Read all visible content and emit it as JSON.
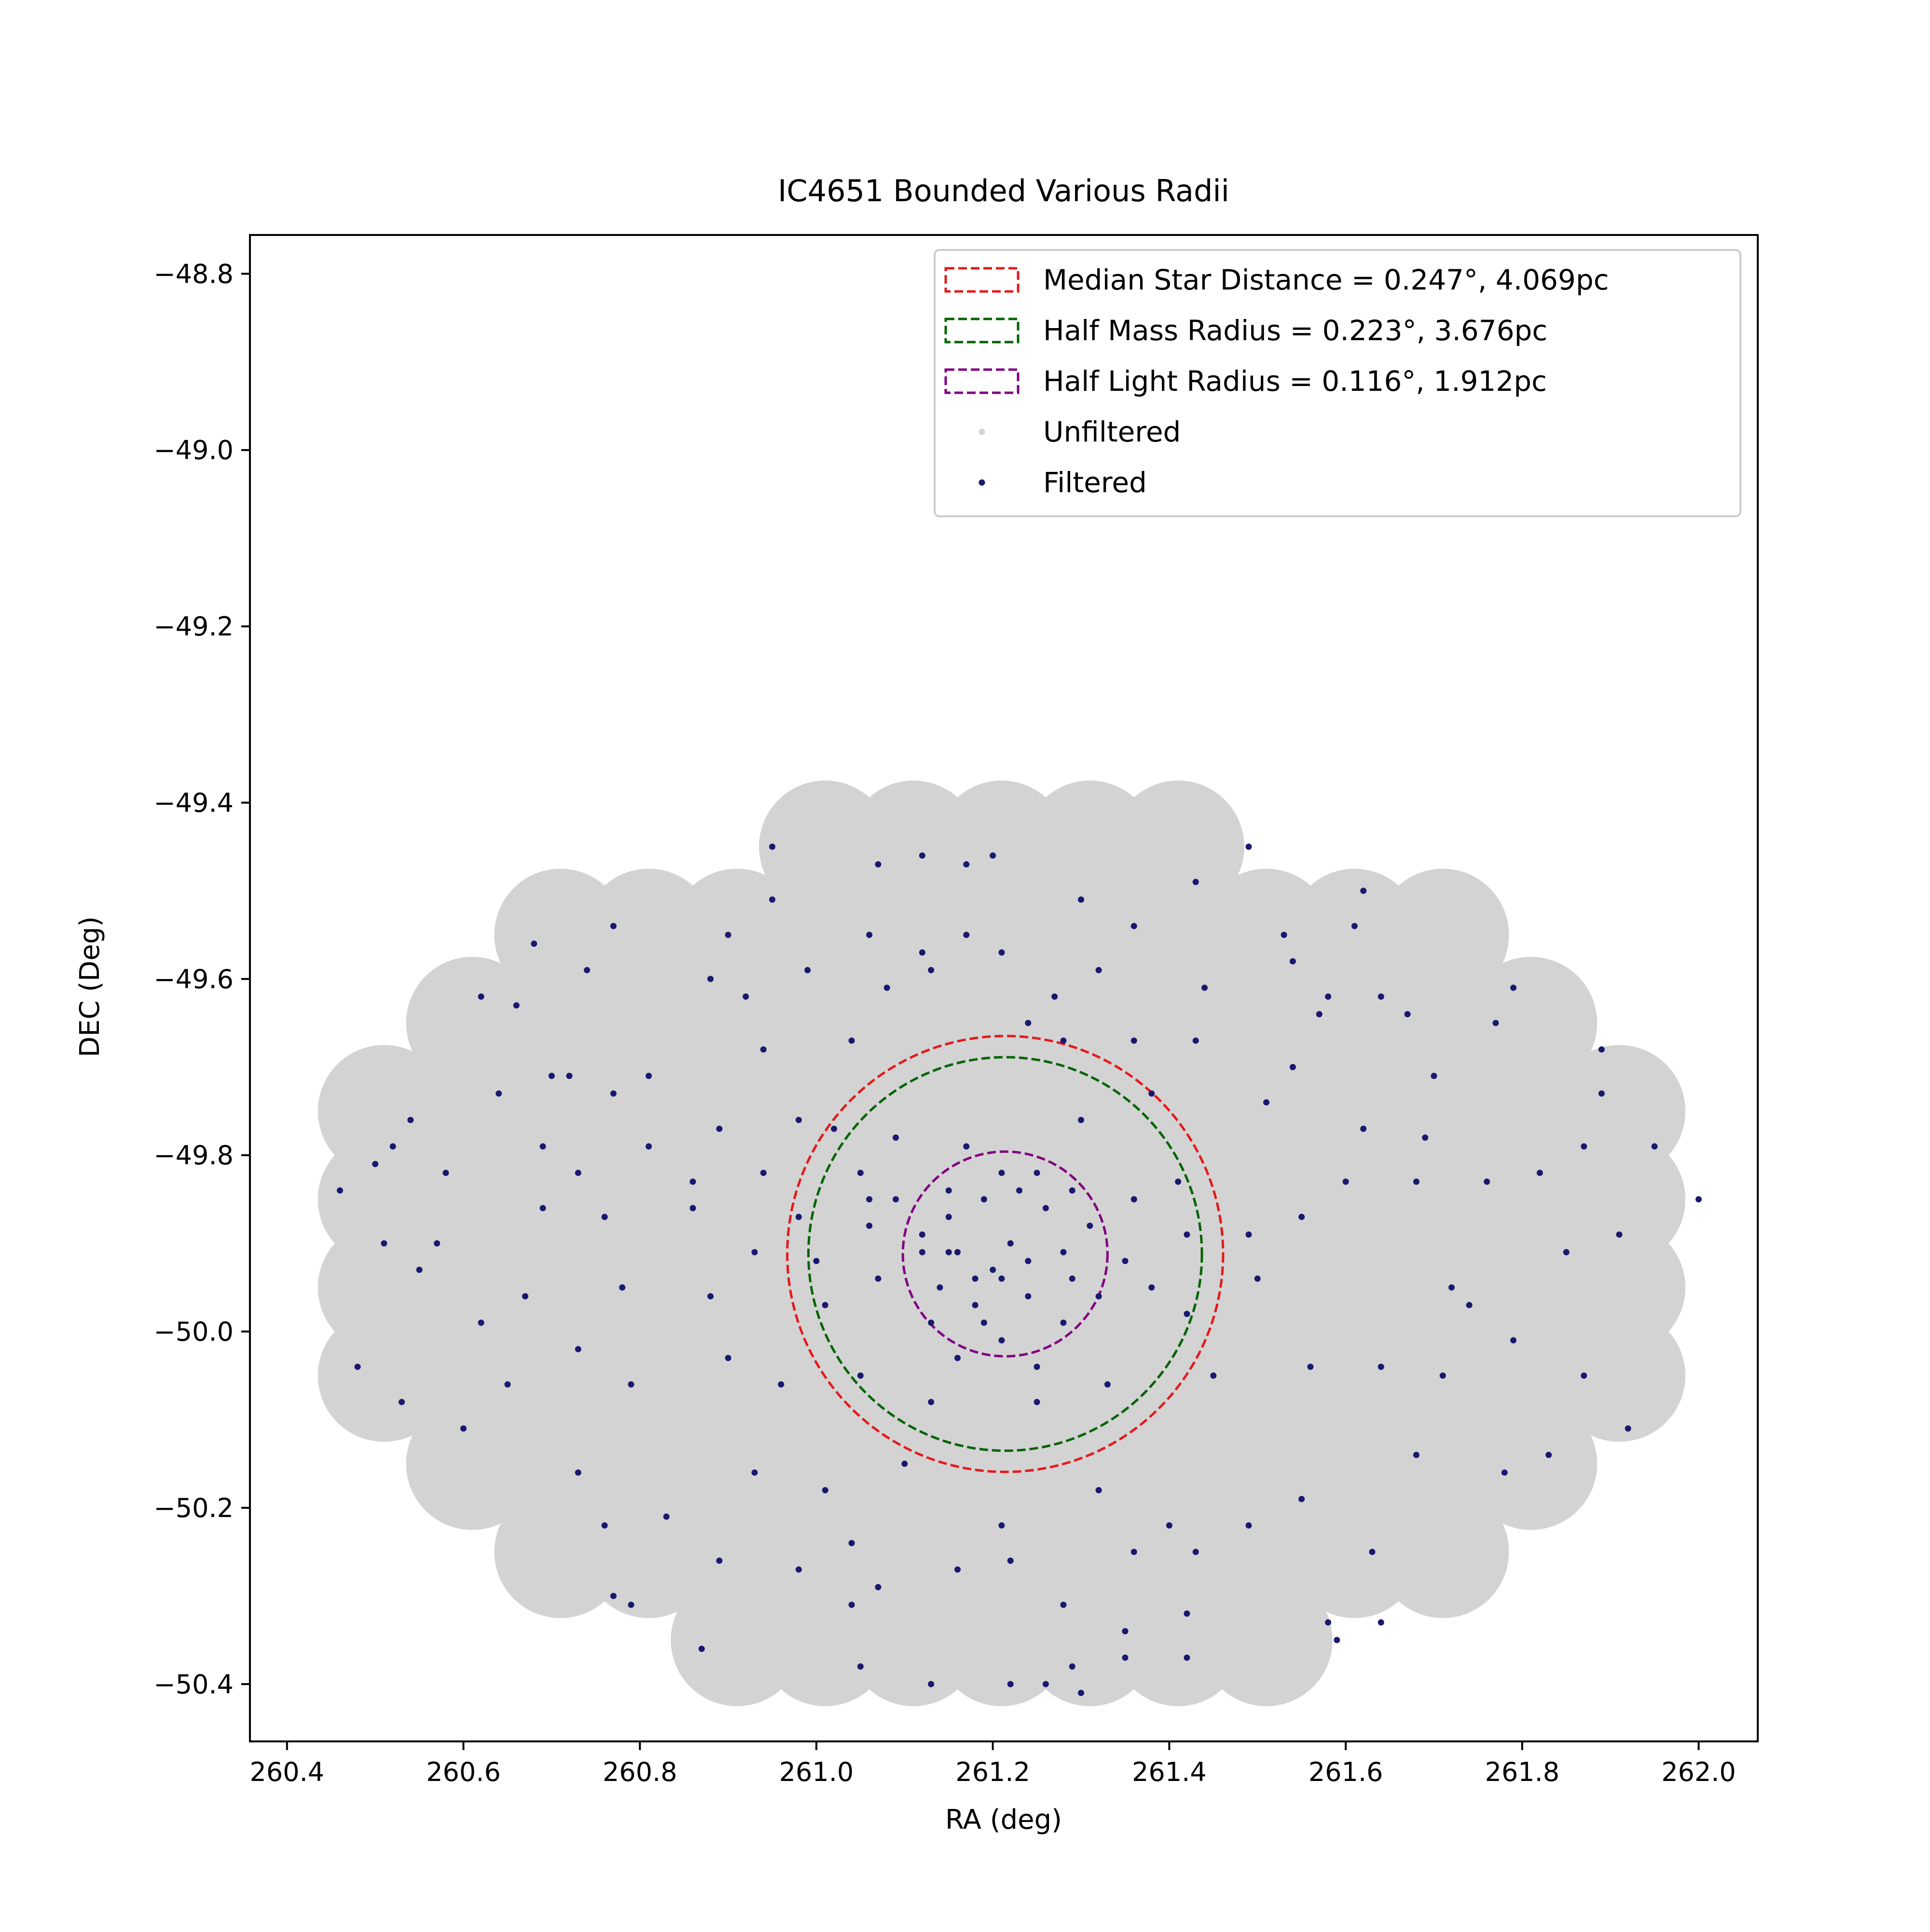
{
  "chart_data": {
    "type": "scatter",
    "title": "IC4651 Bounded Various Radii",
    "x_label": "RA (deg)",
    "y_label": "DEC (Deg)",
    "xlim": [
      260.358,
      262.067
    ],
    "ylim": [
      -50.465,
      -48.756
    ],
    "xticks": [
      260.4,
      260.6,
      260.8,
      {
        "value": 261.0,
        "label": "261.0"
      },
      261.2,
      261.4,
      261.6,
      261.8,
      {
        "value": 262.0,
        "label": "262.0"
      }
    ],
    "yticks": [
      {
        "value": -48.8,
        "label": "−48.8"
      },
      {
        "value": -49.0,
        "label": "−49.0"
      },
      {
        "value": -49.2,
        "label": "−49.2"
      },
      {
        "value": -49.4,
        "label": "−49.4"
      },
      {
        "value": -49.6,
        "label": "−49.6"
      },
      {
        "value": -49.8,
        "label": "−49.8"
      },
      {
        "value": -50.0,
        "label": "−50.0"
      },
      {
        "value": -50.2,
        "label": "−50.2"
      },
      {
        "value": -50.4,
        "label": "−50.4"
      }
    ],
    "legend_position": "upper right",
    "circle_center": {
      "x": 261.214,
      "y": -49.912
    },
    "circles": [
      {
        "name": "Median Star Distance = 0.247°, 4.069pc",
        "radius": 0.247,
        "color": "#e41a1c"
      },
      {
        "name": "Half Mass Radius = 0.223°, 3.676pc",
        "radius": 0.223,
        "color": "#006400"
      },
      {
        "name": "Half Light Radius = 0.116°, 1.912pc",
        "radius": 0.116,
        "color": "#800080"
      }
    ],
    "series": [
      {
        "name": "Unfiltered",
        "color": "#d3d3d3",
        "x": [
          261.01,
          261.11,
          261.21,
          261.31,
          261.41,
          260.71,
          260.81,
          260.91,
          261.01,
          261.11,
          261.21,
          261.31,
          261.41,
          261.51,
          261.61,
          261.71,
          260.61,
          260.71,
          260.81,
          260.91,
          261.01,
          261.11,
          261.21,
          261.31,
          261.41,
          261.51,
          261.61,
          261.71,
          261.81,
          260.51,
          260.61,
          260.71,
          260.81,
          260.91,
          261.01,
          261.11,
          261.21,
          261.31,
          261.41,
          261.51,
          261.61,
          261.71,
          261.81,
          261.91,
          260.51,
          260.61,
          260.71,
          260.81,
          260.91,
          261.01,
          261.11,
          261.21,
          261.31,
          261.41,
          261.51,
          261.61,
          261.71,
          261.81,
          261.91,
          260.51,
          260.61,
          260.71,
          260.81,
          260.91,
          261.01,
          261.11,
          261.21,
          261.31,
          261.41,
          261.51,
          261.61,
          261.71,
          261.81,
          261.91,
          260.51,
          260.61,
          260.71,
          260.81,
          260.91,
          261.01,
          261.11,
          261.21,
          261.31,
          261.41,
          261.51,
          261.61,
          261.71,
          261.81,
          261.91,
          260.61,
          260.71,
          260.81,
          260.91,
          261.01,
          261.11,
          261.21,
          261.31,
          261.41,
          261.51,
          261.61,
          261.71,
          261.81,
          260.71,
          260.81,
          260.91,
          261.01,
          261.11,
          261.21,
          261.31,
          261.41,
          261.51,
          261.61,
          261.71,
          260.91,
          261.01,
          261.11,
          261.21,
          261.31,
          261.41,
          261.51
        ],
        "y": [
          -49.45,
          -49.45,
          -49.45,
          -49.45,
          -49.45,
          -49.55,
          -49.55,
          -49.55,
          -49.55,
          -49.55,
          -49.55,
          -49.55,
          -49.55,
          -49.55,
          -49.55,
          -49.55,
          -49.65,
          -49.65,
          -49.65,
          -49.65,
          -49.65,
          -49.65,
          -49.65,
          -49.65,
          -49.65,
          -49.65,
          -49.65,
          -49.65,
          -49.65,
          -49.75,
          -49.75,
          -49.75,
          -49.75,
          -49.75,
          -49.75,
          -49.75,
          -49.75,
          -49.75,
          -49.75,
          -49.75,
          -49.75,
          -49.75,
          -49.75,
          -49.75,
          -49.85,
          -49.85,
          -49.85,
          -49.85,
          -49.85,
          -49.85,
          -49.85,
          -49.85,
          -49.85,
          -49.85,
          -49.85,
          -49.85,
          -49.85,
          -49.85,
          -49.85,
          -49.95,
          -49.95,
          -49.95,
          -49.95,
          -49.95,
          -49.95,
          -49.95,
          -49.95,
          -49.95,
          -49.95,
          -49.95,
          -49.95,
          -49.95,
          -49.95,
          -49.95,
          -50.05,
          -50.05,
          -50.05,
          -50.05,
          -50.05,
          -50.05,
          -50.05,
          -50.05,
          -50.05,
          -50.05,
          -50.05,
          -50.05,
          -50.05,
          -50.05,
          -50.05,
          -50.15,
          -50.15,
          -50.15,
          -50.15,
          -50.15,
          -50.15,
          -50.15,
          -50.15,
          -50.15,
          -50.15,
          -50.15,
          -50.15,
          -50.15,
          -50.25,
          -50.25,
          -50.25,
          -50.25,
          -50.25,
          -50.25,
          -50.25,
          -50.25,
          -50.25,
          -50.25,
          -50.25,
          -50.35,
          -50.35,
          -50.35,
          -50.35,
          -50.35,
          -50.35,
          -50.35
        ]
      },
      {
        "name": "Filtered",
        "color": "#191970",
        "x": [
          260.95,
          261.07,
          261.12,
          261.17,
          261.2,
          261.49,
          261.43,
          260.95,
          260.9,
          260.77,
          260.68,
          261.06,
          261.12,
          261.17,
          261.3,
          261.36,
          261.62,
          261.53,
          261.61,
          260.62,
          260.66,
          260.74,
          260.88,
          260.92,
          260.99,
          261.08,
          261.13,
          261.21,
          261.27,
          261.32,
          261.44,
          261.54,
          261.58,
          261.64,
          261.79,
          261.77,
          261.67,
          261.57,
          260.7,
          260.72,
          260.64,
          260.77,
          260.81,
          260.94,
          261.04,
          261.24,
          261.28,
          261.36,
          261.43,
          261.54,
          261.7,
          261.89,
          261.89,
          260.54,
          260.52,
          260.69,
          260.81,
          260.89,
          260.98,
          261.09,
          261.17,
          261.3,
          261.38,
          261.51,
          261.62,
          261.69,
          261.87,
          261.95,
          260.46,
          260.5,
          260.58,
          260.73,
          260.86,
          260.94,
          261.05,
          261.15,
          261.25,
          261.41,
          261.6,
          261.68,
          261.76,
          261.82,
          262.0,
          260.51,
          260.57,
          260.69,
          260.76,
          260.86,
          260.93,
          260.98,
          261.06,
          261.12,
          261.15,
          261.18,
          261.2,
          261.22,
          261.24,
          261.28,
          261.31,
          261.35,
          261.42,
          261.49,
          261.55,
          261.85,
          261.91,
          260.55,
          260.62,
          260.67,
          260.78,
          260.88,
          261.01,
          261.13,
          261.19,
          261.28,
          261.42,
          261.5,
          261.72,
          261.79,
          261.74,
          260.48,
          260.53,
          260.65,
          260.73,
          260.79,
          260.9,
          260.96,
          261.05,
          261.16,
          261.25,
          261.33,
          261.45,
          261.56,
          261.64,
          261.71,
          261.87,
          261.92,
          260.6,
          260.73,
          260.76,
          260.83,
          260.93,
          261.01,
          261.1,
          261.21,
          261.32,
          261.4,
          261.49,
          261.55,
          261.63,
          261.68,
          261.78,
          261.83,
          260.89,
          260.98,
          261.04,
          261.16,
          261.22,
          261.36,
          261.43,
          261.58,
          261.59,
          261.64,
          260.77,
          260.79,
          260.87,
          261.04,
          261.07,
          261.05,
          261.13,
          261.22,
          261.26,
          261.28,
          261.35,
          261.42,
          261.42,
          261.35,
          261.3,
          261.29,
          261.15,
          261.19,
          261.23,
          261.26,
          261.14,
          261.16,
          261.21,
          261.24,
          261.29,
          261.18,
          261.12,
          261.32,
          261.09,
          261.21,
          261.29,
          261.07,
          261.06,
          261.36,
          261.38,
          261.21,
          261.25,
          261.13,
          261.0,
          261.02
        ],
        "y": [
          -49.45,
          -49.47,
          -49.46,
          -49.47,
          -49.46,
          -49.45,
          -49.49,
          -49.51,
          -49.55,
          -49.54,
          -49.56,
          -49.55,
          -49.57,
          -49.55,
          -49.51,
          -49.54,
          -49.5,
          -49.55,
          -49.54,
          -49.62,
          -49.63,
          -49.59,
          -49.6,
          -49.62,
          -49.59,
          -49.61,
          -49.59,
          -49.57,
          -49.62,
          -49.59,
          -49.61,
          -49.58,
          -49.62,
          -49.62,
          -49.61,
          -49.65,
          -49.64,
          -49.64,
          -49.71,
          -49.71,
          -49.73,
          -49.73,
          -49.71,
          -49.68,
          -49.67,
          -49.65,
          -49.67,
          -49.67,
          -49.67,
          -49.7,
          -49.71,
          -49.68,
          -49.73,
          -49.76,
          -49.79,
          -49.79,
          -49.79,
          -49.77,
          -49.76,
          -49.78,
          -49.79,
          -49.76,
          -49.73,
          -49.74,
          -49.77,
          -49.78,
          -49.79,
          -49.79,
          -49.84,
          -49.81,
          -49.82,
          -49.82,
          -49.83,
          -49.82,
          -49.82,
          -49.84,
          -49.82,
          -49.83,
          -49.83,
          -49.83,
          -49.83,
          -49.82,
          -49.85,
          -49.9,
          -49.9,
          -49.86,
          -49.87,
          -49.86,
          -49.91,
          -49.87,
          -49.88,
          -49.89,
          -49.91,
          -49.94,
          -49.93,
          -49.9,
          -49.96,
          -49.91,
          -49.88,
          -49.92,
          -49.89,
          -49.89,
          -49.87,
          -49.91,
          -49.89,
          -49.93,
          -49.99,
          -49.96,
          -49.95,
          -49.96,
          -49.97,
          -49.99,
          -49.99,
          -49.99,
          -49.98,
          -49.94,
          -49.95,
          -50.01,
          -49.97,
          -50.04,
          -50.08,
          -50.06,
          -50.02,
          -50.06,
          -50.03,
          -50.06,
          -50.05,
          -50.03,
          -50.08,
          -50.06,
          -50.05,
          -50.04,
          -50.04,
          -50.05,
          -50.05,
          -50.11,
          -50.11,
          -50.16,
          -50.22,
          -50.21,
          -50.16,
          -50.18,
          -50.15,
          -50.22,
          -50.18,
          -50.22,
          -50.22,
          -50.19,
          -50.25,
          -50.14,
          -50.16,
          -50.14,
          -50.26,
          -50.27,
          -50.24,
          -50.27,
          -50.26,
          -50.25,
          -50.25,
          -50.33,
          -50.35,
          -50.33,
          -50.3,
          -50.31,
          -50.36,
          -50.31,
          -50.29,
          -50.38,
          -50.4,
          -50.4,
          -50.4,
          -50.31,
          -50.34,
          -50.32,
          -50.37,
          -50.37,
          -50.41,
          -50.38,
          -49.87,
          -49.85,
          -49.84,
          -49.86,
          -49.95,
          -49.91,
          -49.94,
          -49.92,
          -49.94,
          -49.97,
          -49.91,
          -49.96,
          -49.85,
          -49.82,
          -49.84,
          -49.94,
          -49.85,
          -49.85,
          -49.95,
          -50.01,
          -50.04,
          -50.08,
          -49.92,
          -49.77
        ]
      }
    ]
  }
}
